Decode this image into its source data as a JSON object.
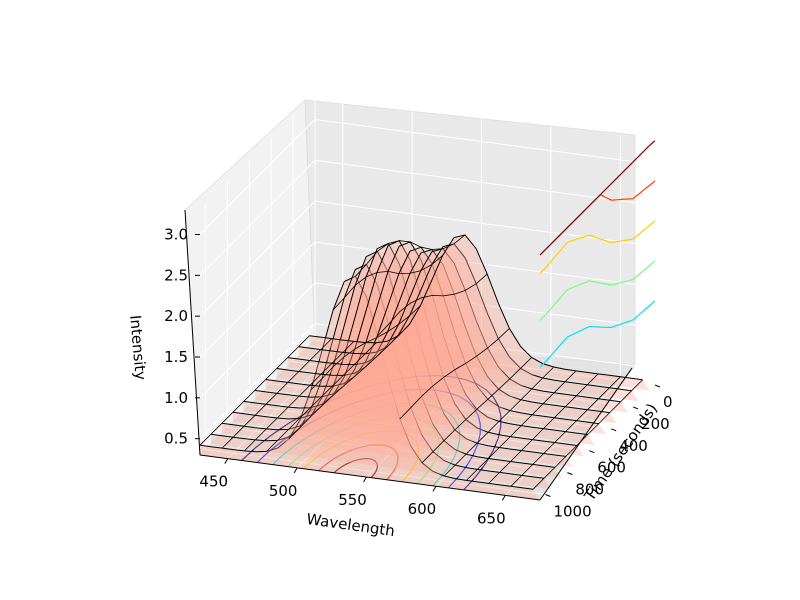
{
  "chart_data": {
    "type": "surface3d",
    "title": "",
    "xlabel": "Wavelength",
    "ylabel": "Time (seconds)",
    "zlabel": "Intensity",
    "x_ticks": [
      "450",
      "500",
      "550",
      "600",
      "650"
    ],
    "y_ticks": [
      "0",
      "200",
      "400",
      "600",
      "800",
      "1000"
    ],
    "z_ticks": [
      "0.5",
      "1.0",
      "1.5",
      "2.0",
      "2.5",
      "3.0"
    ],
    "xlim": [
      430,
      675
    ],
    "ylim": [
      0,
      1050
    ],
    "zlim": [
      0.3,
      3.3
    ],
    "grid": true,
    "surface": {
      "baseline": 0.42,
      "peak_center_wavelength": 540,
      "peak_width": 30,
      "peak_intensities_by_time": [
        {
          "time": 1000,
          "intensity": 2.75
        },
        {
          "time": 800,
          "intensity": 2.8
        },
        {
          "time": 600,
          "intensity": 2.6
        },
        {
          "time": 400,
          "intensity": 2.2
        },
        {
          "time": 200,
          "intensity": 1.95
        },
        {
          "time": 0,
          "intensity": 1.9
        }
      ]
    },
    "contour_levels": [
      0.8,
      1.2,
      1.6,
      2.0,
      2.4,
      2.7
    ],
    "contour_colors": [
      "#000080",
      "#0030ff",
      "#00e5e5",
      "#70ff80",
      "#ffd000",
      "#ff4000",
      "#800000"
    ]
  }
}
